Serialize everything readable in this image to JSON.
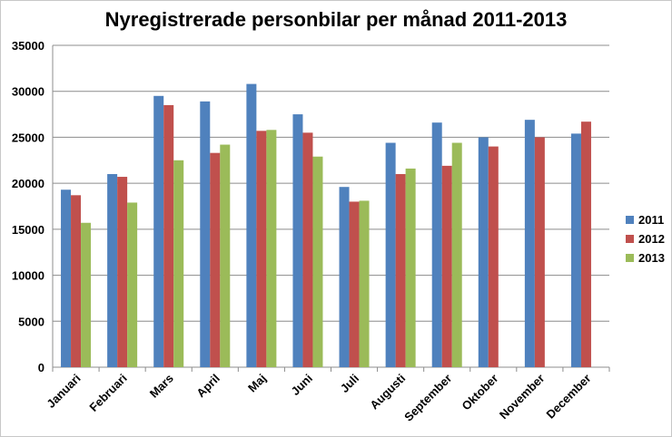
{
  "chart_data": {
    "type": "bar",
    "title": "Nyregistrerade personbilar per månad 2011-2013",
    "categories": [
      "Januari",
      "Februari",
      "Mars",
      "April",
      "Maj",
      "Juni",
      "Juli",
      "Augusti",
      "September",
      "Oktober",
      "November",
      "December"
    ],
    "series": [
      {
        "name": "2011",
        "color": "#4f81bd",
        "values": [
          19300,
          21000,
          29500,
          28900,
          30800,
          27500,
          19600,
          24400,
          26600,
          25000,
          26900,
          25400
        ]
      },
      {
        "name": "2012",
        "color": "#c0504d",
        "values": [
          18700,
          20700,
          28500,
          23300,
          25700,
          25500,
          18000,
          21000,
          21900,
          24000,
          25000,
          26700
        ]
      },
      {
        "name": "2013",
        "color": "#9bbb59",
        "values": [
          15700,
          17900,
          22500,
          24200,
          25800,
          22900,
          18100,
          21600,
          24400,
          null,
          null,
          null
        ]
      }
    ],
    "ylim": [
      0,
      35000
    ],
    "yticks": [
      0,
      5000,
      10000,
      15000,
      20000,
      25000,
      30000,
      35000
    ],
    "grid": true,
    "legend": "right"
  }
}
